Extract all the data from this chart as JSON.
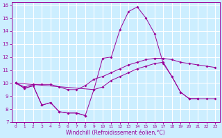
{
  "xlabel": "Windchill (Refroidissement éolien,°C)",
  "background_color": "#cceeff",
  "grid_color": "#ffffff",
  "line_color": "#990099",
  "xlim": [
    -0.5,
    23.5
  ],
  "ylim": [
    7,
    16.2
  ],
  "xticks": [
    0,
    1,
    2,
    3,
    4,
    5,
    6,
    7,
    8,
    9,
    10,
    11,
    12,
    13,
    14,
    15,
    16,
    17,
    18,
    19,
    20,
    21,
    22,
    23
  ],
  "yticks": [
    7,
    8,
    9,
    10,
    11,
    12,
    13,
    14,
    15,
    16
  ],
  "line1_x": [
    0,
    1,
    2,
    3,
    4,
    5,
    6,
    7,
    8,
    9,
    10,
    11,
    12,
    13,
    14,
    15,
    16,
    17,
    18,
    19,
    20,
    21
  ],
  "line1_y": [
    10.0,
    9.6,
    9.8,
    8.3,
    8.5,
    7.8,
    7.7,
    7.7,
    7.5,
    9.5,
    11.9,
    12.0,
    14.1,
    15.5,
    15.85,
    15.0,
    13.8,
    11.5,
    10.5,
    9.3,
    8.8,
    8.8
  ],
  "line2_x": [
    0,
    1,
    2,
    3,
    4,
    5,
    6,
    7,
    8,
    9,
    10,
    11,
    12,
    13,
    14,
    15,
    16,
    17,
    18,
    19,
    20,
    21,
    22,
    23
  ],
  "line2_y": [
    10.0,
    9.7,
    9.9,
    9.9,
    9.9,
    9.7,
    9.5,
    9.5,
    9.8,
    10.3,
    10.5,
    10.8,
    11.1,
    11.4,
    11.6,
    11.8,
    11.9,
    11.9,
    11.8,
    11.6,
    11.5,
    11.4,
    11.3,
    11.2
  ],
  "line3_x": [
    0,
    9,
    10,
    11,
    12,
    13,
    14,
    15,
    16,
    17,
    18,
    19,
    20,
    21,
    22,
    23
  ],
  "line3_y": [
    10.0,
    9.5,
    9.7,
    10.2,
    10.5,
    10.8,
    11.1,
    11.3,
    11.5,
    11.6,
    10.5,
    9.3,
    8.8,
    8.8,
    8.8,
    8.8
  ],
  "line4_x": [
    0,
    1,
    2,
    3,
    4,
    5,
    6,
    7,
    8
  ],
  "line4_y": [
    10.0,
    9.6,
    9.8,
    8.3,
    8.5,
    7.8,
    7.7,
    7.7,
    7.5
  ],
  "xlabel_fontsize": 5.5,
  "tick_fontsize": 5
}
